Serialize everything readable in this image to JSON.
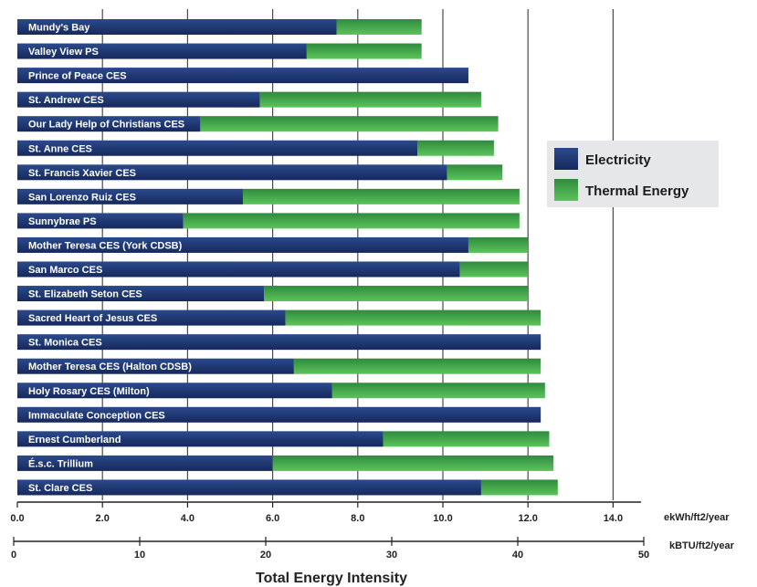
{
  "chart_data": {
    "type": "bar",
    "orientation": "horizontal",
    "stacked": true,
    "categories": [
      "Mundy's Bay",
      "Valley View PS",
      "Prince of Peace CES",
      "St. Andrew CES",
      "Our Lady Help of Christians CES",
      "St. Anne CES",
      "St. Francis Xavier CES",
      "San Lorenzo Ruiz CES",
      "Sunnybrae PS",
      "Mother Teresa CES (York CDSB)",
      "San Marco CES",
      "St. Elizabeth Seton CES",
      "Sacred Heart of Jesus CES",
      "St. Monica CES",
      "Mother Teresa CES (Halton CDSB)",
      "Holy Rosary CES (Milton)",
      "Immaculate Conception CES",
      "Ernest Cumberland",
      "É.s.c. Trillium",
      "St. Clare CES"
    ],
    "series": [
      {
        "name": "Electricity",
        "color": "#1c3470",
        "values": [
          7.5,
          6.8,
          10.6,
          5.7,
          4.3,
          9.4,
          10.1,
          5.3,
          3.9,
          10.6,
          10.4,
          5.8,
          6.3,
          12.3,
          6.5,
          7.4,
          12.3,
          8.6,
          6.0,
          10.9
        ]
      },
      {
        "name": "Thermal Energy",
        "color": "#3aa048",
        "values": [
          2.0,
          2.7,
          0.0,
          5.2,
          7.0,
          1.8,
          1.3,
          6.5,
          7.9,
          1.4,
          1.6,
          6.2,
          6.0,
          0.0,
          5.8,
          5.0,
          0.0,
          3.9,
          6.6,
          1.8
        ]
      }
    ],
    "axes": {
      "primary": {
        "unit": "ekWh/ft2/year",
        "range": [
          0,
          14.0
        ],
        "ticks": [
          "0.0",
          "2.0",
          "4.0",
          "6.0",
          "8.0",
          "10.0",
          "12.0",
          "14.0"
        ]
      },
      "secondary": {
        "unit": "kBTU/ft2/year",
        "range": [
          0,
          50
        ],
        "ticks": [
          "0",
          "10",
          "20",
          "30",
          "40",
          "50"
        ]
      }
    },
    "xlabel": "Total Energy Intensity",
    "grid": true,
    "legend_position": "right"
  }
}
